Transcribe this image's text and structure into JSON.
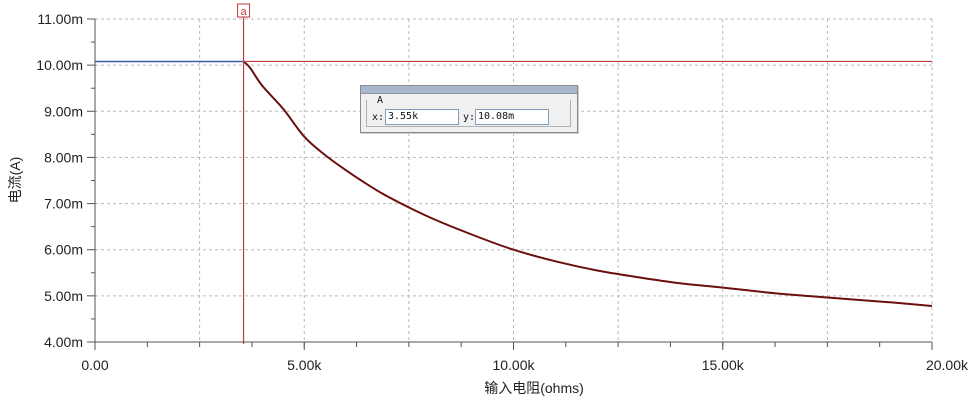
{
  "chart_data": {
    "type": "line",
    "xlabel": "输入电阻(ohms)",
    "ylabel": "电流(A)",
    "xlim": [
      0,
      20000
    ],
    "ylim": [
      4.0,
      11.0
    ],
    "y_unit_note": "values in mA (tick labels use m suffix)",
    "x_ticks": [
      {
        "value": 0,
        "label": "0.00"
      },
      {
        "value": 5000,
        "label": "5.00k"
      },
      {
        "value": 10000,
        "label": "10.00k"
      },
      {
        "value": 15000,
        "label": "15.00k"
      },
      {
        "value": 20000,
        "label": "20.00k"
      }
    ],
    "y_ticks": [
      {
        "value": 4,
        "label": "4.00m"
      },
      {
        "value": 5,
        "label": "5.00m"
      },
      {
        "value": 6,
        "label": "6.00m"
      },
      {
        "value": 7,
        "label": "7.00m"
      },
      {
        "value": 8,
        "label": "8.00m"
      },
      {
        "value": 9,
        "label": "9.00m"
      },
      {
        "value": 10,
        "label": "10.00m"
      },
      {
        "value": 11,
        "label": "11.00m"
      }
    ],
    "grid": true,
    "series": [
      {
        "color": "#6b0f0f",
        "x": [
          0,
          3550,
          3700,
          4000,
          4500,
          5000,
          5500,
          6000,
          6500,
          7000,
          8000,
          9000,
          10000,
          11000,
          12000,
          13000,
          14000,
          15000,
          16000,
          17000,
          18000,
          19000,
          20000
        ],
        "y": [
          10.08,
          10.08,
          9.95,
          9.55,
          9.05,
          8.45,
          8.05,
          7.72,
          7.42,
          7.15,
          6.7,
          6.33,
          6.0,
          5.75,
          5.55,
          5.4,
          5.27,
          5.18,
          5.08,
          5.0,
          4.93,
          4.86,
          4.78
        ]
      }
    ],
    "cursor": {
      "marker_label": "a",
      "x_value": 3550,
      "y_value": 10.08,
      "color": "#c23a3a"
    }
  },
  "cursor_panel": {
    "title": "A",
    "x_label": "x:",
    "x_value": "3.55k",
    "y_label": "y:",
    "y_value": "10.08m"
  },
  "colors": {
    "pre_cursor_line": "#3a5fa8",
    "curve": "#6b0f0f",
    "cursor": "#c23a3a"
  }
}
